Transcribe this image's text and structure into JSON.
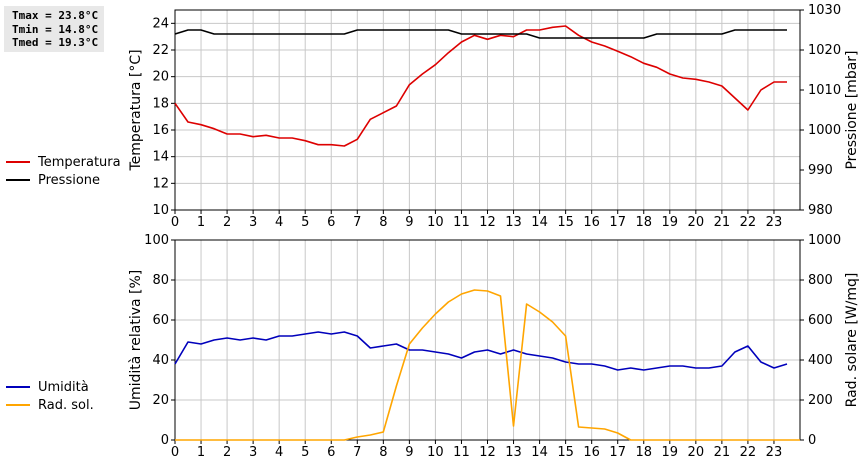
{
  "stats": {
    "tmax": "Tmax = 23.8°C",
    "tmin": "Tmin = 14.8°C",
    "tmed": "Tmed = 19.3°C"
  },
  "chart_data": [
    {
      "type": "line",
      "xlim": [
        0,
        24
      ],
      "xticks": [
        "0",
        "1",
        "2",
        "3",
        "4",
        "5",
        "6",
        "7",
        "8",
        "9",
        "10",
        "11",
        "12",
        "13",
        "14",
        "15",
        "16",
        "17",
        "18",
        "19",
        "20",
        "21",
        "22",
        "23"
      ],
      "ylabel": "Temperatura [°C]",
      "y2label": "Pressione [mbar]",
      "ylim": [
        10,
        25
      ],
      "yticks": [
        10,
        12,
        14,
        16,
        18,
        20,
        22,
        24
      ],
      "y2lim": [
        980,
        1030
      ],
      "y2ticks": [
        980,
        990,
        1000,
        1010,
        1020,
        1030
      ],
      "grid": true,
      "legend_position": "left",
      "series": [
        {
          "name": "Temperatura",
          "axis": "left",
          "color": "#dd0000",
          "x": [
            0,
            0.5,
            1,
            1.5,
            2,
            2.5,
            3,
            3.5,
            4,
            4.5,
            5,
            5.5,
            6,
            6.5,
            7,
            7.5,
            8,
            8.5,
            9,
            9.5,
            10,
            10.5,
            11,
            11.5,
            12,
            12.5,
            13,
            13.5,
            14,
            14.5,
            15,
            15.5,
            16,
            16.5,
            17,
            17.5,
            18,
            18.5,
            19,
            19.5,
            20,
            20.5,
            21,
            21.5,
            22,
            22.5,
            23,
            23.5
          ],
          "values": [
            18.0,
            16.6,
            16.4,
            16.1,
            15.7,
            15.7,
            15.5,
            15.6,
            15.4,
            15.4,
            15.2,
            14.9,
            14.9,
            14.8,
            15.3,
            16.8,
            17.3,
            17.8,
            19.4,
            20.2,
            20.9,
            21.8,
            22.6,
            23.1,
            22.8,
            23.1,
            23.0,
            23.5,
            23.5,
            23.7,
            23.8,
            23.1,
            22.6,
            22.3,
            21.9,
            21.5,
            21.0,
            20.7,
            20.2,
            19.9,
            19.8,
            19.6,
            19.3,
            18.4,
            17.5,
            19.0,
            19.6,
            19.6
          ]
        },
        {
          "name": "Pressione",
          "axis": "right",
          "color": "#000000",
          "x": [
            0,
            0.5,
            1,
            1.5,
            2,
            2.5,
            3,
            3.5,
            4,
            4.5,
            5,
            5.5,
            6,
            6.5,
            7,
            7.5,
            8,
            8.5,
            9,
            9.5,
            10,
            10.5,
            11,
            11.5,
            12,
            12.5,
            13,
            13.5,
            14,
            14.5,
            15,
            15.5,
            16,
            16.5,
            17,
            17.5,
            18,
            18.5,
            19,
            19.5,
            20,
            20.5,
            21,
            21.5,
            22,
            22.5,
            23,
            23.5
          ],
          "values": [
            1024,
            1025,
            1025,
            1024,
            1024,
            1024,
            1024,
            1024,
            1024,
            1024,
            1024,
            1024,
            1024,
            1024,
            1025,
            1025,
            1025,
            1025,
            1025,
            1025,
            1025,
            1025,
            1024,
            1024,
            1024,
            1024,
            1024,
            1024,
            1023,
            1023,
            1023,
            1023,
            1023,
            1023,
            1023,
            1023,
            1023,
            1024,
            1024,
            1024,
            1024,
            1024,
            1024,
            1025,
            1025,
            1025,
            1025,
            1025
          ]
        }
      ]
    },
    {
      "type": "line",
      "xlim": [
        0,
        24
      ],
      "xticks": [
        "0",
        "1",
        "2",
        "3",
        "4",
        "5",
        "6",
        "7",
        "8",
        "9",
        "10",
        "11",
        "12",
        "13",
        "14",
        "15",
        "16",
        "17",
        "18",
        "19",
        "20",
        "21",
        "22",
        "23"
      ],
      "ylabel": "Umidità relativa [%]",
      "y2label": "Rad. solare [W/mq]",
      "ylim": [
        0,
        100
      ],
      "yticks": [
        0,
        20,
        40,
        60,
        80,
        100
      ],
      "y2lim": [
        0,
        1000
      ],
      "y2ticks": [
        0,
        200,
        400,
        600,
        800,
        1000
      ],
      "grid": true,
      "legend_position": "left",
      "series": [
        {
          "name": "Umidità",
          "axis": "left",
          "color": "#0000bb",
          "x": [
            0,
            0.5,
            1,
            1.5,
            2,
            2.5,
            3,
            3.5,
            4,
            4.5,
            5,
            5.5,
            6,
            6.5,
            7,
            7.5,
            8,
            8.5,
            9,
            9.5,
            10,
            10.5,
            11,
            11.5,
            12,
            12.5,
            13,
            13.5,
            14,
            14.5,
            15,
            15.5,
            16,
            16.5,
            17,
            17.5,
            18,
            18.5,
            19,
            19.5,
            20,
            20.5,
            21,
            21.5,
            22,
            22.5,
            23,
            23.5
          ],
          "values": [
            38,
            49,
            48,
            50,
            51,
            50,
            51,
            50,
            52,
            52,
            53,
            54,
            53,
            54,
            52,
            46,
            47,
            48,
            45,
            45,
            44,
            43,
            41,
            44,
            45,
            43,
            45,
            43,
            42,
            41,
            39,
            38,
            38,
            37,
            35,
            36,
            35,
            36,
            37,
            37,
            36,
            36,
            37,
            44,
            47,
            39,
            36,
            38
          ]
        },
        {
          "name": "Rad. sol.",
          "axis": "right",
          "color": "#ffa500",
          "x": [
            0,
            6.5,
            7,
            7.5,
            8,
            8.5,
            9,
            9.5,
            10,
            10.5,
            11,
            11.5,
            12,
            12.5,
            13,
            13.5,
            14,
            14.5,
            15,
            15.5,
            16,
            16.5,
            17,
            17.5,
            24
          ],
          "values": [
            0,
            0,
            15,
            25,
            40,
            270,
            480,
            560,
            630,
            690,
            730,
            750,
            745,
            720,
            70,
            680,
            640,
            590,
            520,
            65,
            60,
            55,
            35,
            0,
            0
          ]
        }
      ]
    }
  ]
}
